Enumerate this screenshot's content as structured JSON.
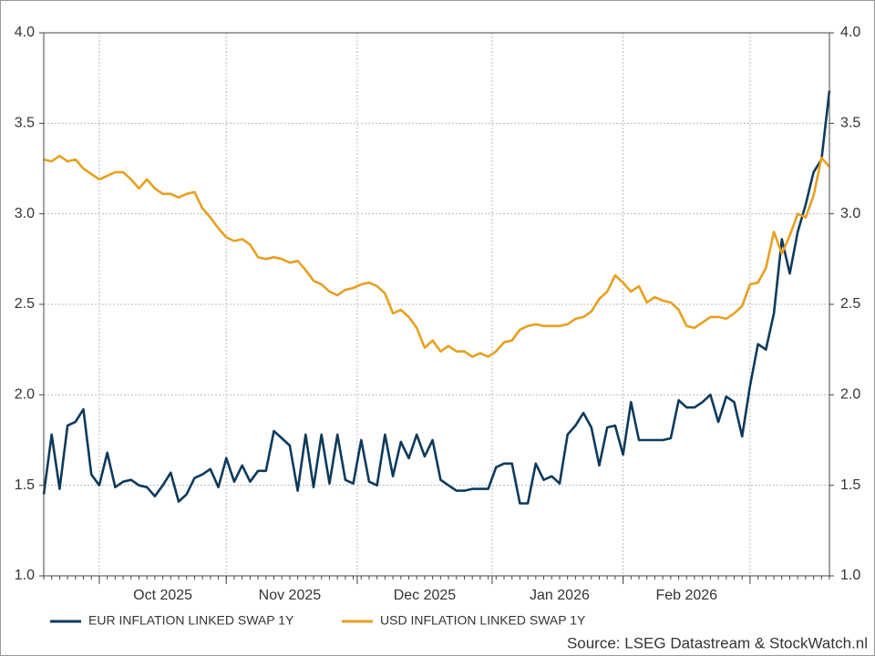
{
  "chart_data": {
    "type": "line",
    "categories": [
      null,
      null,
      null,
      null,
      null,
      null,
      null,
      null,
      null,
      null,
      null,
      null,
      null,
      null,
      null,
      "Oct 2025",
      null,
      null,
      null,
      null,
      null,
      null,
      null,
      null,
      null,
      null,
      null,
      null,
      null,
      null,
      null,
      "Nov 2025",
      null,
      null,
      null,
      null,
      null,
      null,
      null,
      null,
      null,
      null,
      null,
      null,
      null,
      null,
      null,
      null,
      "Dec 2025",
      null,
      null,
      null,
      null,
      null,
      null,
      null,
      null,
      null,
      null,
      null,
      null,
      null,
      null,
      null,
      null,
      "Jan 2026",
      null,
      null,
      null,
      null,
      null,
      null,
      null,
      null,
      null,
      null,
      null,
      null,
      null,
      null,
      null,
      "Feb 2026",
      null,
      null,
      null,
      null,
      null,
      null,
      null,
      null,
      null,
      null,
      null,
      null,
      null,
      null,
      null,
      null,
      null,
      null
    ],
    "series": [
      {
        "name": "EUR INFLATION LINKED SWAP 1Y",
        "color": "#0d3a5c",
        "values": [
          1.45,
          1.78,
          1.48,
          1.83,
          1.85,
          1.92,
          1.56,
          1.5,
          1.68,
          1.49,
          1.52,
          1.53,
          1.5,
          1.49,
          1.44,
          1.5,
          1.57,
          1.41,
          1.45,
          1.54,
          1.56,
          1.59,
          1.49,
          1.65,
          1.52,
          1.61,
          1.52,
          1.58,
          1.58,
          1.8,
          1.76,
          1.72,
          1.47,
          1.78,
          1.49,
          1.78,
          1.51,
          1.78,
          1.53,
          1.51,
          1.75,
          1.52,
          1.5,
          1.78,
          1.55,
          1.74,
          1.65,
          1.78,
          1.66,
          1.75,
          1.53,
          1.5,
          1.47,
          1.47,
          1.48,
          1.48,
          1.48,
          1.6,
          1.62,
          1.62,
          1.4,
          1.4,
          1.62,
          1.53,
          1.55,
          1.51,
          1.78,
          1.83,
          1.9,
          1.82,
          1.61,
          1.82,
          1.83,
          1.67,
          1.96,
          1.75,
          1.75,
          1.75,
          1.75,
          1.76,
          1.97,
          1.93,
          1.93,
          1.96,
          2.0,
          1.85,
          1.99,
          1.96,
          1.77,
          2.05,
          2.28,
          2.25,
          2.45,
          2.86,
          2.67,
          2.9,
          3.05,
          3.23,
          3.3,
          3.68
        ]
      },
      {
        "name": "USD INFLATION LINKED SWAP 1Y",
        "color": "#e8a020",
        "values": [
          3.3,
          3.29,
          3.32,
          3.29,
          3.3,
          3.25,
          3.22,
          3.19,
          3.21,
          3.23,
          3.23,
          3.19,
          3.14,
          3.19,
          3.14,
          3.11,
          3.11,
          3.09,
          3.11,
          3.12,
          3.03,
          2.98,
          2.92,
          2.87,
          2.85,
          2.86,
          2.83,
          2.76,
          2.75,
          2.76,
          2.75,
          2.73,
          2.74,
          2.69,
          2.63,
          2.61,
          2.57,
          2.55,
          2.58,
          2.59,
          2.61,
          2.62,
          2.6,
          2.56,
          2.45,
          2.47,
          2.43,
          2.37,
          2.26,
          2.3,
          2.24,
          2.27,
          2.24,
          2.24,
          2.21,
          2.23,
          2.21,
          2.24,
          2.29,
          2.3,
          2.36,
          2.38,
          2.39,
          2.38,
          2.38,
          2.38,
          2.39,
          2.42,
          2.43,
          2.46,
          2.53,
          2.57,
          2.66,
          2.62,
          2.57,
          2.6,
          2.51,
          2.54,
          2.52,
          2.51,
          2.47,
          2.38,
          2.37,
          2.4,
          2.43,
          2.43,
          2.42,
          2.45,
          2.49,
          2.61,
          2.62,
          2.7,
          2.9,
          2.78,
          2.88,
          3.0,
          2.98,
          3.1,
          3.31,
          3.26
        ]
      }
    ],
    "ylim": [
      1,
      4
    ],
    "yticks": [
      {
        "value": 1,
        "label": "1.0"
      },
      {
        "value": 1.5,
        "label": "1.5"
      },
      {
        "value": 2,
        "label": "2.0"
      },
      {
        "value": 2.5,
        "label": "2.5"
      },
      {
        "value": 3,
        "label": "3.0"
      },
      {
        "value": 3.5,
        "label": "3.5"
      },
      {
        "value": 4,
        "label": "4.0"
      }
    ],
    "y2lim": [
      1,
      4
    ],
    "y2ticks": [
      {
        "value": 1,
        "label": "1.0"
      },
      {
        "value": 1.5,
        "label": "1.5"
      },
      {
        "value": 2,
        "label": "2.0"
      },
      {
        "value": 2.5,
        "label": "2.5"
      },
      {
        "value": 3,
        "label": "3.0"
      },
      {
        "value": 3.5,
        "label": "3.5"
      },
      {
        "value": 4,
        "label": "4.0"
      }
    ],
    "grid": true,
    "legend": "bottom",
    "source": "Source: LSEG Datastream & StockWatch.nl"
  }
}
